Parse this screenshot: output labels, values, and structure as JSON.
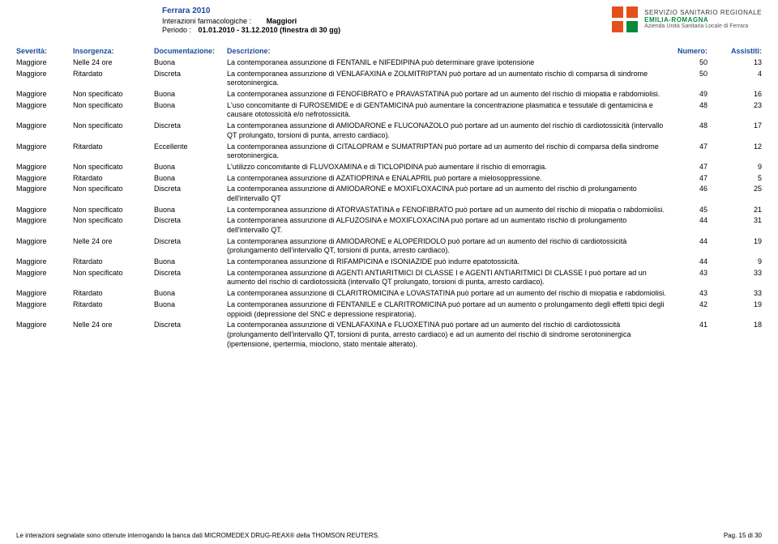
{
  "header": {
    "title": "Ferrara 2010",
    "interazioni_label": "Interazioni farmacologiche :",
    "interazioni_value": "Maggiori",
    "periodo_label": "Periodo :",
    "periodo_value": "01.01.2010 - 31.12.2010 (finestra di 30  gg)"
  },
  "logo": {
    "line1": "SERVIZIO SANITARIO REGIONALE",
    "line2": "EMILIA-ROMAGNA",
    "line3": "Azienda Unità Sanitaria Locale di Ferrara"
  },
  "columns": {
    "severity": "Severità:",
    "onset": "Insorgenza:",
    "documentation": "Documentazione:",
    "description": "Descrizione:",
    "number": "Numero:",
    "assisted": "Assistiti:"
  },
  "rows": [
    {
      "sev": "Maggiore",
      "ins": "Nelle 24 ore",
      "doc": "Buona",
      "desc": "La contemporanea assunzione di FENTANIL e NIFEDIPINA può determinare grave ipotensione",
      "num": "50",
      "ass": "13"
    },
    {
      "sev": "Maggiore",
      "ins": "Ritardato",
      "doc": "Discreta",
      "desc": "La contemporanea assunzione di VENLAFAXINA e ZOLMITRIPTAN può portare ad un aumentato rischio di comparsa di sindrome serotoninergica.",
      "num": "50",
      "ass": "4"
    },
    {
      "sev": "Maggiore",
      "ins": "Non specificato",
      "doc": "Buona",
      "desc": "La contemporanea assunzione di FENOFIBRATO e PRAVASTATINA può portare ad un aumento del rischio di miopatia e rabdomiolisi.",
      "num": "49",
      "ass": "16"
    },
    {
      "sev": "Maggiore",
      "ins": "Non specificato",
      "doc": "Buona",
      "desc": "L'uso concomitante di FUROSEMIDE e di GENTAMICINA può aumentare la concentrazione plasmatica e tessutale di gentamicina e causare ototossicità e/o nefrotossicità.",
      "num": "48",
      "ass": "23"
    },
    {
      "sev": "Maggiore",
      "ins": "Non specificato",
      "doc": "Discreta",
      "desc": "La contemporanea assunzione di AMIODARONE e FLUCONAZOLO può portare ad un aumento del rischio di cardiotossicità (intervallo QT prolungato, torsioni di punta, arresto cardiaco).",
      "num": "48",
      "ass": "17"
    },
    {
      "sev": "Maggiore",
      "ins": "Ritardato",
      "doc": "Eccellente",
      "desc": "La contemporanea assunzione di CITALOPRAM e SUMATRIPTAN può portare ad un aumento del rischio di comparsa della sindrome serotoninergica.",
      "num": "47",
      "ass": "12"
    },
    {
      "sev": "Maggiore",
      "ins": "Non specificato",
      "doc": "Buona",
      "desc": "L'utilizzo concomitante di FLUVOXAMINA e di TICLOPIDINA può aumentare il rischio di emorragia.",
      "num": "47",
      "ass": "9"
    },
    {
      "sev": "Maggiore",
      "ins": "Ritardato",
      "doc": "Buona",
      "desc": "La contemporanea assunzione di AZATIOPRINA  e ENALAPRIL  può portare a mielosoppressione.",
      "num": "47",
      "ass": "5"
    },
    {
      "sev": "Maggiore",
      "ins": "Non specificato",
      "doc": "Discreta",
      "desc": "La contemporanea assunzione di AMIODARONE e MOXIFLOXACINA può portare ad un aumento del rischio di prolungamento dell'intervallo QT",
      "num": "46",
      "ass": "25"
    },
    {
      "sev": "Maggiore",
      "ins": "Non specificato",
      "doc": "Buona",
      "desc": "La contemporanea assunzione di ATORVASTATINA e FENOFIBRATO può portare ad un aumento del rischio di miopatia o rabdomiolisi.",
      "num": "45",
      "ass": "21"
    },
    {
      "sev": "Maggiore",
      "ins": "Non specificato",
      "doc": "Discreta",
      "desc": "La contemporanea assunzione di ALFUZOSINA e MOXIFLOXACINA può portare ad un aumentato rischio di prolungamento dell'intervallo QT.",
      "num": "44",
      "ass": "31"
    },
    {
      "sev": "Maggiore",
      "ins": "Nelle 24 ore",
      "doc": "Discreta",
      "desc": "La contemporanea assunzione di AMIODARONE e ALOPERIDOLO può portare ad un aumento del rischio di cardiotossicità (prolungamento dell'intervallo QT, torsioni di punta, arresto cardiaco).",
      "num": "44",
      "ass": "19"
    },
    {
      "sev": "Maggiore",
      "ins": "Ritardato",
      "doc": "Buona",
      "desc": "La contemporanea assunzione di RIFAMPICINA e ISONIAZIDE può indurre epatotossicità.",
      "num": "44",
      "ass": "9"
    },
    {
      "sev": "Maggiore",
      "ins": "Non specificato",
      "doc": "Discreta",
      "desc": "La contemporanea assunzione di AGENTI ANTIARITMICI DI CLASSE I e AGENTI ANTIARITMICI DI CLASSE I può portare ad un aumento del rischio di cardiotossicità (intervallo QT prolungato, torsioni di punta, arresto cardiaco).",
      "num": "43",
      "ass": "33"
    },
    {
      "sev": "Maggiore",
      "ins": "Ritardato",
      "doc": "Buona",
      "desc": "La contemporanea assunzione di CLARITROMICINA e LOVASTATINA può portare ad un aumento del rischio di miopatia e rabdomiolisi.",
      "num": "43",
      "ass": "33"
    },
    {
      "sev": "Maggiore",
      "ins": "Ritardato",
      "doc": "Buona",
      "desc": "La contemporanea assunzione di FENTANILE e CLARITROMICINA può portare ad un aumento o prolungamento degli effetti tipici degli oppioidi (depressione del SNC e depressione respiratoria).",
      "num": "42",
      "ass": "19"
    },
    {
      "sev": "Maggiore",
      "ins": "Nelle 24 ore",
      "doc": "Discreta",
      "desc": "La contemporanea assunzione di VENLAFAXINA e FLUOXETINA può portare ad un aumento del rischio di cardiotossicità (prolungamento dell'intervallo QT, torsioni di punta, arresto cardiaco) e ad un aumento del rischio di sindrome serotoninergica (ipertensione, ipertermia, mioclono, stato mentale alterato).",
      "num": "41",
      "ass": "18"
    }
  ],
  "footer": {
    "note": "Le interazioni segnalate sono ottenute interrogando la banca dati MICROMEDEX DRUG-REAX® della THOMSON REUTERS.",
    "page": "Pag. 15 di 30"
  }
}
